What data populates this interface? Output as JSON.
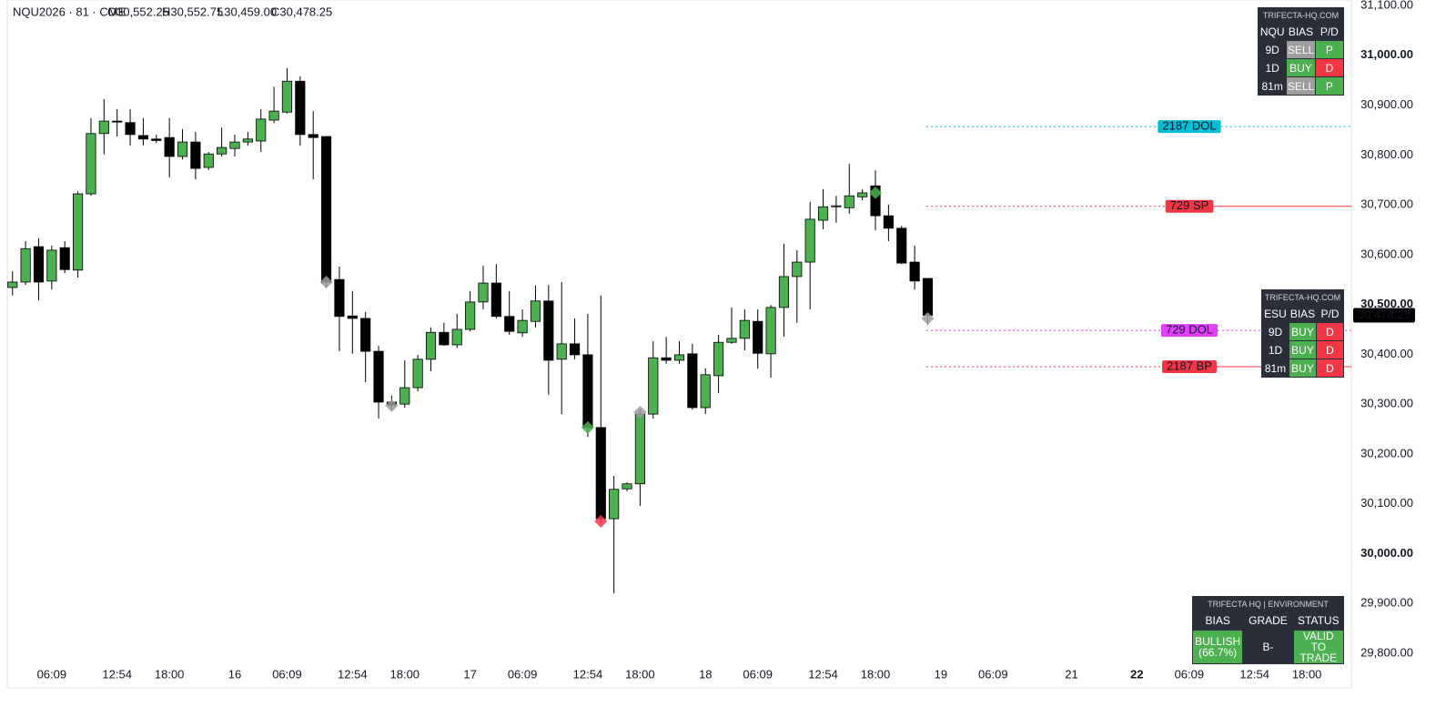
{
  "chart_data": {
    "type": "candlestick",
    "title": "NQU2026 · 81 · CME",
    "ohlc_labels": [
      "O30,552.25",
      "H30,552.75",
      "L30,459.00",
      "C30,478.25"
    ],
    "up_color": "#4caf50",
    "down_color": "#000000",
    "x": [
      0,
      1,
      2,
      3,
      4,
      5,
      6,
      7,
      8,
      9,
      10,
      11,
      12,
      13,
      14,
      15,
      16,
      17,
      18,
      19,
      20,
      21,
      22,
      23,
      24,
      25,
      26,
      27,
      28,
      29,
      30,
      31,
      32,
      33,
      34,
      35,
      36,
      37,
      38,
      39,
      40,
      41,
      42,
      43,
      44,
      45,
      46,
      47,
      48,
      49,
      50,
      51,
      52,
      53,
      54,
      55,
      56,
      57,
      58,
      59,
      60,
      61,
      62,
      63,
      64,
      65,
      66,
      67,
      68,
      69,
      70
    ],
    "open": [
      30534,
      30545,
      30616,
      30547,
      30614,
      30569,
      30722,
      30843,
      30868,
      30865,
      30839,
      30832,
      30835,
      30797,
      30826,
      30775,
      30802,
      30813,
      30826,
      30828,
      30870,
      30886,
      30948,
      30841,
      30837,
      30550,
      30477,
      30472,
      30406,
      30304,
      30300,
      30333,
      30390,
      30444,
      30419,
      30450,
      30505,
      30543,
      30476,
      30443,
      30466,
      30507,
      30390,
      30421,
      30399,
      30253,
      30070,
      30130,
      30140,
      30280,
      30393,
      30388,
      30401,
      30293,
      30357,
      30424,
      30432,
      30466,
      30401,
      30494,
      30556,
      30585,
      30669,
      30696,
      30694,
      30716,
      30738,
      30678,
      30653,
      30585,
      30552.25
    ],
    "high": [
      30567,
      30627,
      30633,
      30618,
      30627,
      30727,
      30874,
      30912,
      30892,
      30892,
      30874,
      30841,
      30874,
      30852,
      30846,
      30806,
      30855,
      30841,
      30846,
      30892,
      30937,
      30974,
      30958,
      30888,
      30837,
      30576,
      30527,
      30485,
      30417,
      30317,
      30388,
      30399,
      30454,
      30463,
      30481,
      30527,
      30578,
      30581,
      30527,
      30490,
      30538,
      30539,
      30545,
      30472,
      30481,
      30518,
      30156,
      30143,
      30289,
      30426,
      30435,
      30426,
      30421,
      30372,
      30439,
      30494,
      30490,
      30490,
      30499,
      30622,
      30609,
      30706,
      30731,
      30718,
      30782,
      30731,
      30769,
      30700,
      30658,
      30618,
      30552.75
    ],
    "low": [
      30518,
      30539,
      30508,
      30530,
      30563,
      30554,
      30718,
      30801,
      30837,
      30819,
      30819,
      30824,
      30755,
      30791,
      30751,
      30770,
      30797,
      30797,
      30819,
      30806,
      30864,
      30883,
      30819,
      30751,
      30534,
      30406,
      30401,
      30344,
      30271,
      30289,
      30293,
      30326,
      30366,
      30417,
      30413,
      30446,
      30490,
      30472,
      30439,
      30435,
      30454,
      30319,
      30280,
      30390,
      30234,
      30061,
      29920,
      30125,
      30096,
      30271,
      30381,
      30381,
      30289,
      30280,
      30322,
      30421,
      30408,
      30371,
      30353,
      30435,
      30463,
      30490,
      30651,
      30664,
      30682,
      30709,
      30649,
      30627,
      30581,
      30530,
      30459
    ],
    "close": [
      30545,
      30612,
      30545,
      30609,
      30570,
      30722,
      30843,
      30868,
      30866,
      30841,
      30832,
      30829,
      30797,
      30826,
      30773,
      30802,
      30815,
      30826,
      30832,
      30872,
      30888,
      30948,
      30841,
      30835,
      30545,
      30476,
      30472,
      30406,
      30304,
      30298,
      30333,
      30390,
      30444,
      30419,
      30450,
      30505,
      30543,
      30476,
      30446,
      30468,
      30507,
      30388,
      30421,
      30399,
      30253,
      30070,
      30129,
      30140,
      30280,
      30393,
      30388,
      30399,
      30293,
      30359,
      30424,
      30432,
      30468,
      30402,
      30494,
      30556,
      30585,
      30671,
      30696,
      30698,
      30718,
      30724,
      30678,
      30653,
      30583,
      30547,
      30478.25
    ],
    "xlim": [
      -0.4,
      102.4
    ],
    "xticks": [
      {
        "value": 3,
        "label": "06:09"
      },
      {
        "value": 8,
        "label": "12:54"
      },
      {
        "value": 12,
        "label": "18:00"
      },
      {
        "value": 17,
        "label": "16"
      },
      {
        "value": 21,
        "label": "06:09"
      },
      {
        "value": 26,
        "label": "12:54"
      },
      {
        "value": 30,
        "label": "18:00"
      },
      {
        "value": 35,
        "label": "17"
      },
      {
        "value": 39,
        "label": "06:09"
      },
      {
        "value": 44,
        "label": "12:54"
      },
      {
        "value": 48,
        "label": "18:00"
      },
      {
        "value": 53,
        "label": "18"
      },
      {
        "value": 57,
        "label": "06:09"
      },
      {
        "value": 62,
        "label": "12:54"
      },
      {
        "value": 66,
        "label": "18:00"
      },
      {
        "value": 71,
        "label": "19"
      },
      {
        "value": 75,
        "label": "06:09"
      },
      {
        "value": 81,
        "label": "21"
      },
      {
        "value": 86,
        "label": "22",
        "bold": true
      },
      {
        "value": 90,
        "label": "06:09"
      },
      {
        "value": 95,
        "label": "12:54"
      },
      {
        "value": 99,
        "label": "18:00"
      }
    ],
    "ylim": [
      29778,
      31111
    ],
    "yticks": [
      {
        "value": 31100,
        "label": "31,100.00"
      },
      {
        "value": 31000,
        "label": "31,000.00",
        "bold": true
      },
      {
        "value": 30900,
        "label": "30,900.00"
      },
      {
        "value": 30800,
        "label": "30,800.00"
      },
      {
        "value": 30700,
        "label": "30,700.00"
      },
      {
        "value": 30600,
        "label": "30,600.00"
      },
      {
        "value": 30500,
        "label": "30,500.00",
        "bold": true
      },
      {
        "value": 30400,
        "label": "30,400.00"
      },
      {
        "value": 30300,
        "label": "30,300.00"
      },
      {
        "value": 30200,
        "label": "30,200.00"
      },
      {
        "value": 30100,
        "label": "30,100.00"
      },
      {
        "value": 30000,
        "label": "30,000.00",
        "bold": true
      },
      {
        "value": 29900,
        "label": "29,900.00"
      },
      {
        "value": 29800,
        "label": "29,800.00"
      }
    ],
    "last_price": {
      "value": 30478.25,
      "label": "30,478.25"
    },
    "levels": [
      {
        "name": "2187 DOL",
        "value": 30857,
        "color": "#00bcd4",
        "style": "dotted"
      },
      {
        "name": "729 SP",
        "value": 30697,
        "color": "#f23645",
        "style": "mixed"
      },
      {
        "name": "729 DOL",
        "value": 30448,
        "color": "#e040fb",
        "style": "dotted"
      },
      {
        "name": "2187 BP",
        "value": 30375,
        "color": "#f23645",
        "style": "mixed"
      }
    ],
    "markers": [
      {
        "x": 24,
        "y": 30545,
        "color": "#9e9e9e"
      },
      {
        "x": 29,
        "y": 30297,
        "color": "#9e9e9e"
      },
      {
        "x": 44,
        "y": 30253,
        "color": "#4caf50"
      },
      {
        "x": 45,
        "y": 30065,
        "color": "#f23645"
      },
      {
        "x": 48,
        "y": 30284,
        "color": "#9e9e9e"
      },
      {
        "x": 66,
        "y": 30724,
        "color": "#4caf50"
      },
      {
        "x": 70,
        "y": 30472,
        "color": "#9e9e9e"
      }
    ]
  },
  "panels": [
    {
      "title": "TRIFECTA-HQ.COM",
      "rows": [
        [
          {
            "text": "NQU",
            "color": "#2a2e39"
          },
          {
            "text": "BIAS",
            "color": "#2a2e39"
          },
          {
            "text": "P/D",
            "color": "#2a2e39"
          }
        ],
        [
          {
            "text": "9D",
            "color": "#2a2e39"
          },
          {
            "text": "SELL",
            "color": "#9e9e9e"
          },
          {
            "text": "P",
            "color": "#4caf50"
          }
        ],
        [
          {
            "text": "1D",
            "color": "#2a2e39"
          },
          {
            "text": "BUY",
            "color": "#4caf50"
          },
          {
            "text": "D",
            "color": "#f23645"
          }
        ],
        [
          {
            "text": "81m",
            "color": "#2a2e39"
          },
          {
            "text": "SELL",
            "color": "#9e9e9e"
          },
          {
            "text": "P",
            "color": "#4caf50"
          }
        ]
      ]
    },
    {
      "title": "TRIFECTA-HQ.COM",
      "rows": [
        [
          {
            "text": "ESU",
            "color": "#2a2e39"
          },
          {
            "text": "BIAS",
            "color": "#2a2e39"
          },
          {
            "text": "P/D",
            "color": "#2a2e39"
          }
        ],
        [
          {
            "text": "9D",
            "color": "#2a2e39"
          },
          {
            "text": "BUY",
            "color": "#4caf50"
          },
          {
            "text": "D",
            "color": "#f23645"
          }
        ],
        [
          {
            "text": "1D",
            "color": "#2a2e39"
          },
          {
            "text": "BUY",
            "color": "#4caf50"
          },
          {
            "text": "D",
            "color": "#f23645"
          }
        ],
        [
          {
            "text": "81m",
            "color": "#2a2e39"
          },
          {
            "text": "BUY",
            "color": "#4caf50"
          },
          {
            "text": "D",
            "color": "#f23645"
          }
        ]
      ]
    },
    {
      "title": "TRIFECTA HQ | ENVIRONMENT",
      "rows": [
        [
          {
            "text": "BIAS",
            "color": "#2a2e39"
          },
          {
            "text": "GRADE",
            "color": "#2a2e39"
          },
          {
            "text": "STATUS",
            "color": "#2a2e39"
          }
        ],
        [
          {
            "text": "BULLISH\n(66.7%)",
            "color": "#4caf50"
          },
          {
            "text": "B-",
            "color": "#2a2e39"
          },
          {
            "text": "VALID\nTO TRADE",
            "color": "#4caf50"
          }
        ]
      ]
    }
  ]
}
